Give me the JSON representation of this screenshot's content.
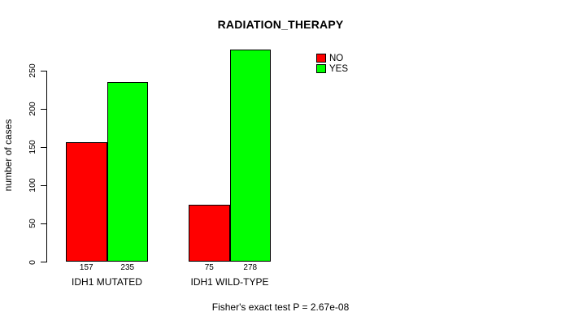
{
  "chart_data": {
    "type": "bar",
    "title": "RADIATION_THERAPY",
    "categories": [
      "IDH1 MUTATED",
      "IDH1 WILD-TYPE"
    ],
    "series": [
      {
        "name": "NO",
        "color": "#FF0000",
        "values": [
          157,
          75
        ]
      },
      {
        "name": "YES",
        "color": "#00FF00",
        "values": [
          235,
          278
        ]
      }
    ],
    "show_bar_values": true,
    "bar_value_labels": [
      [
        157,
        235
      ],
      [
        75,
        278
      ]
    ],
    "xlabel": "",
    "ylabel": "number of cases",
    "ylim": [
      0,
      285
    ],
    "yticks": [
      0,
      50,
      100,
      150,
      200,
      250
    ],
    "grid": false,
    "legend_position": "top-right",
    "legend": [
      "NO",
      "YES"
    ],
    "annotation": "Fisher's exact test P = 2.67e-08",
    "colors": {
      "bar_border": "#000000",
      "axis": "#000000",
      "text": "#000000",
      "background": "#FFFFFF"
    }
  }
}
